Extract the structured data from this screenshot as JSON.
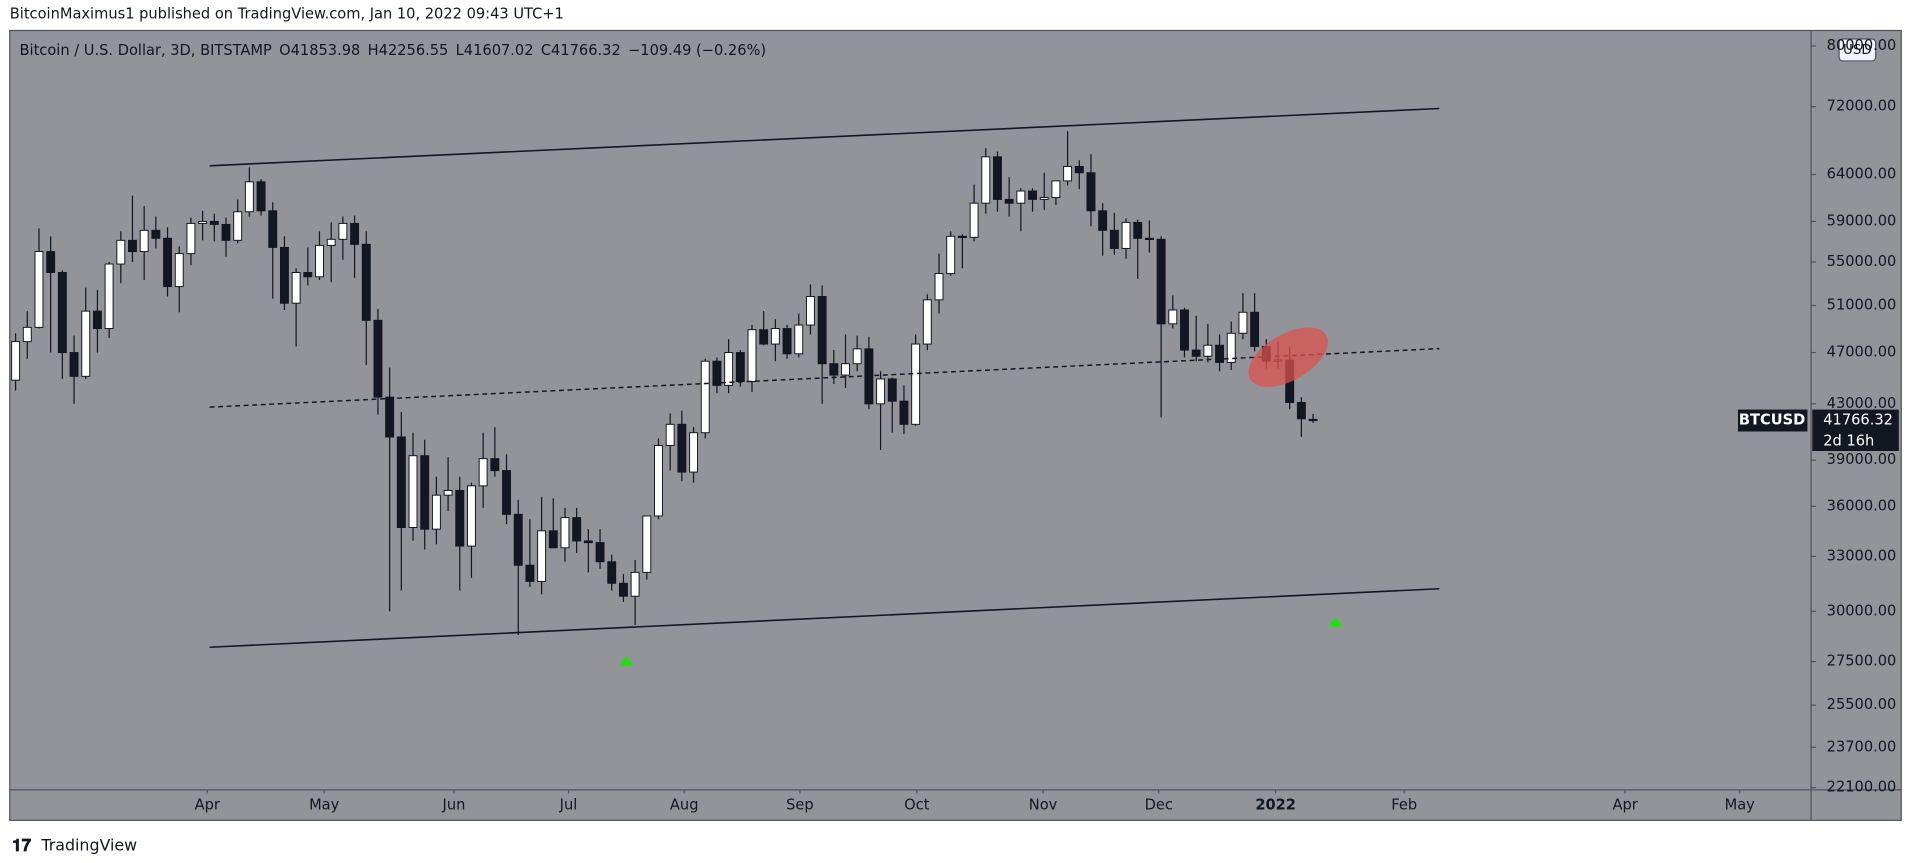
{
  "header": {
    "published": "BitcoinMaximus1 published on TradingView.com, Jan 10, 2022 09:43 UTC+1",
    "currency_button": "USD",
    "footer_brand": "TradingView"
  },
  "chart_data": {
    "type": "candlestick",
    "title": "Bitcoin / U.S. Dollar, 3D, BITSTAMP",
    "ohlc_letters": [
      "O",
      "H",
      "L",
      "C"
    ],
    "change": "−109.49 (−0.26%)",
    "symbol": "BTCUSD",
    "countdown": "2d 16h",
    "up_color": "#ffffff",
    "down_color": "#131722",
    "log_scale": true,
    "grid": false,
    "categories": [
      null,
      null,
      null,
      null,
      null,
      null,
      null,
      null,
      null,
      null,
      null,
      null,
      null,
      null,
      null,
      null,
      null,
      null,
      null,
      null,
      null,
      null,
      null,
      null,
      null,
      null,
      null,
      null,
      null,
      null,
      null,
      null,
      null,
      null,
      null,
      null,
      null,
      null,
      null,
      null,
      null,
      null,
      null,
      null,
      null,
      null,
      null,
      null,
      null,
      null,
      null,
      null,
      null,
      null,
      null,
      null,
      null,
      null,
      null,
      null,
      null,
      null,
      null,
      null,
      null,
      null,
      null,
      null,
      null,
      null,
      null,
      null,
      null,
      null,
      null,
      null,
      null,
      null,
      null,
      null,
      null,
      null,
      null,
      null,
      null,
      null,
      null,
      null,
      null,
      null,
      null,
      null,
      null,
      null,
      null,
      null,
      null,
      null,
      null,
      null,
      null,
      null,
      null,
      null,
      null,
      null,
      null,
      null,
      null,
      null,
      null,
      null
    ],
    "open": [
      44800,
      47900,
      49100,
      56000,
      54000,
      47000,
      45100,
      50500,
      49000,
      54800,
      57100,
      56000,
      58100,
      57300,
      52700,
      55800,
      58800,
      59000,
      58700,
      57100,
      60000,
      63200,
      60100,
      56400,
      51200,
      54000,
      53600,
      56600,
      57200,
      58800,
      56700,
      49700,
      43500,
      40600,
      34700,
      39300,
      34600,
      36700,
      37000,
      33600,
      37300,
      39100,
      38300,
      35500,
      32500,
      31600,
      34500,
      33500,
      35300,
      33900,
      33800,
      32700,
      31500,
      30800,
      32100,
      35400,
      40000,
      41500,
      38200,
      40900,
      46300,
      44400,
      47000,
      44700,
      48900,
      47700,
      49000,
      46900,
      49300,
      51800,
      46100,
      45200,
      46100,
      47300,
      43000,
      44900,
      43200,
      41500,
      47700,
      51500,
      53900,
      57500,
      57400,
      60900,
      66000,
      61300,
      60900,
      62200,
      61300,
      61500,
      63300,
      64900,
      64200,
      60100,
      58100,
      56300,
      58900,
      57300,
      57200,
      49400,
      50600,
      47200,
      46700,
      47600,
      46200,
      48600,
      50400,
      47500,
      46300,
      46400,
      43100,
      41853.98
    ],
    "high": [
      48600,
      50500,
      58300,
      57500,
      54200,
      48400,
      52600,
      52400,
      55000,
      58000,
      61700,
      60600,
      59500,
      58400,
      56500,
      59400,
      60100,
      59800,
      59400,
      61300,
      64800,
      63500,
      61000,
      57500,
      54400,
      56400,
      58000,
      58900,
      59500,
      59600,
      58000,
      50700,
      45800,
      42400,
      40900,
      40400,
      37900,
      39200,
      37900,
      37500,
      40900,
      41300,
      39400,
      36400,
      35200,
      36600,
      36500,
      35900,
      35900,
      34600,
      34600,
      33100,
      32000,
      32800,
      35400,
      40500,
      42300,
      42500,
      41300,
      46500,
      46600,
      48100,
      47200,
      49300,
      50500,
      49800,
      49300,
      50300,
      52900,
      52800,
      47200,
      48500,
      48400,
      48300,
      45500,
      45000,
      44400,
      48500,
      52000,
      55800,
      58000,
      57700,
      62900,
      67000,
      66600,
      63700,
      62500,
      62500,
      64200,
      63300,
      69000,
      65600,
      66300,
      60900,
      59900,
      59300,
      59200,
      59100,
      57500,
      51900,
      50800,
      50100,
      49400,
      48500,
      49600,
      52100,
      52100,
      48100,
      47900,
      47500,
      43500,
      42256.55
    ],
    "low": [
      44000,
      46500,
      49000,
      47000,
      44900,
      43000,
      44900,
      47000,
      48200,
      53000,
      55000,
      53300,
      56300,
      51800,
      50400,
      54700,
      57100,
      57000,
      55500,
      56800,
      59500,
      59600,
      51600,
      50600,
      47500,
      52800,
      53300,
      53100,
      55200,
      53500,
      46000,
      42200,
      30000,
      31100,
      33900,
      33400,
      33700,
      35700,
      31100,
      31800,
      35900,
      37900,
      34900,
      28800,
      31300,
      30900,
      33500,
      32700,
      33200,
      32100,
      32300,
      31100,
      30500,
      29300,
      31700,
      35200,
      38300,
      37600,
      37500,
      40500,
      43800,
      43800,
      44300,
      43900,
      47600,
      46300,
      46500,
      46600,
      48500,
      43000,
      44500,
      44200,
      45500,
      42600,
      39700,
      40900,
      40800,
      41400,
      47200,
      50300,
      53700,
      54400,
      57000,
      59800,
      60000,
      59500,
      58000,
      60000,
      60200,
      60700,
      62800,
      62400,
      58500,
      55600,
      55700,
      55300,
      53400,
      55900,
      42000,
      49000,
      46600,
      46300,
      46200,
      45500,
      45600,
      48100,
      47100,
      45700,
      45700,
      42600,
      40600,
      41607.02
    ],
    "close": [
      47900,
      49100,
      56000,
      54000,
      47000,
      45100,
      50500,
      49000,
      54800,
      57100,
      56000,
      58100,
      57300,
      52700,
      55800,
      58800,
      59000,
      58700,
      57100,
      60000,
      63200,
      60100,
      56400,
      51200,
      54000,
      53600,
      56600,
      57200,
      58800,
      56700,
      49700,
      43500,
      40600,
      34700,
      39300,
      34600,
      36700,
      37000,
      33600,
      37300,
      39100,
      38300,
      35500,
      32500,
      31600,
      34500,
      33500,
      35300,
      33900,
      33800,
      32700,
      31500,
      30800,
      32100,
      35400,
      40000,
      41500,
      38200,
      40900,
      46300,
      44400,
      47000,
      44700,
      48900,
      47700,
      49000,
      46900,
      49300,
      51800,
      46100,
      45200,
      46100,
      47300,
      43000,
      44900,
      43200,
      41500,
      47700,
      51500,
      53900,
      57500,
      57400,
      60900,
      66000,
      61300,
      60900,
      62200,
      61300,
      61500,
      63300,
      64900,
      64200,
      60100,
      58100,
      56300,
      58900,
      57300,
      57200,
      49400,
      50600,
      47200,
      46700,
      47600,
      46200,
      48600,
      50400,
      47500,
      46300,
      46400,
      43100,
      41900,
      41766.32
    ],
    "xlim": [
      -0.5,
      153.5
    ],
    "xticks": [
      {
        "value": 16.4,
        "label": "Apr"
      },
      {
        "value": 26.4,
        "label": "May"
      },
      {
        "value": 37.5,
        "label": "Jun"
      },
      {
        "value": 47.3,
        "label": "Jul"
      },
      {
        "value": 57.2,
        "label": "Aug"
      },
      {
        "value": 67.1,
        "label": "Sep"
      },
      {
        "value": 77.1,
        "label": "Oct"
      },
      {
        "value": 87.9,
        "label": "Nov"
      },
      {
        "value": 97.8,
        "label": "Dec"
      },
      {
        "value": 107.8,
        "label": "2022",
        "bold": true
      },
      {
        "value": 118.8,
        "label": "Feb"
      },
      {
        "value": 137.7,
        "label": "Apr"
      },
      {
        "value": 147.5,
        "label": "May"
      }
    ],
    "ylim": [
      22060,
      81650
    ],
    "yticks": [
      {
        "value": 80000,
        "label": "80000.00"
      },
      {
        "value": 72000,
        "label": "72000.00"
      },
      {
        "value": 64000,
        "label": "64000.00"
      },
      {
        "value": 59000,
        "label": "59000.00"
      },
      {
        "value": 55000,
        "label": "55000.00"
      },
      {
        "value": 51000,
        "label": "51000.00"
      },
      {
        "value": 47000,
        "label": "47000.00"
      },
      {
        "value": 43000,
        "label": "43000.00"
      },
      {
        "value": 39000,
        "label": "39000.00"
      },
      {
        "value": 36000,
        "label": "36000.00"
      },
      {
        "value": 33000,
        "label": "33000.00"
      },
      {
        "value": 30000,
        "label": "30000.00"
      },
      {
        "value": 27500,
        "label": "27500.00"
      },
      {
        "value": 25500,
        "label": "25500.00"
      },
      {
        "value": 23700,
        "label": "23700.00"
      },
      {
        "value": 22100,
        "label": "22100.00"
      }
    ]
  }
}
